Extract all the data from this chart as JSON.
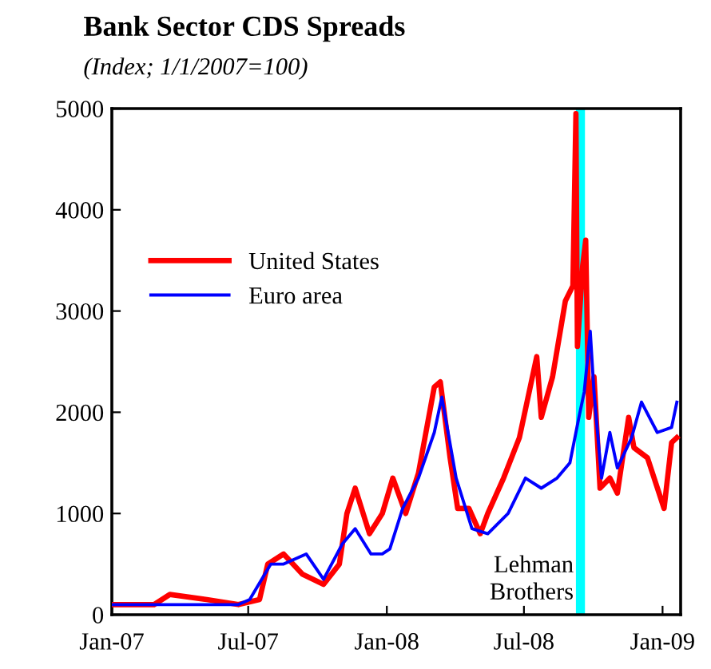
{
  "chart_data": {
    "type": "line",
    "title": "Bank Sector CDS Spreads",
    "subtitle": "(Index; 1/1/2007=100)",
    "xlim": [
      "2007-01-01",
      "2009-01-25"
    ],
    "xticks": [
      {
        "value": "2007-01-01",
        "label": "Jan-07"
      },
      {
        "value": "2007-07-01",
        "label": "Jul-07"
      },
      {
        "value": "2008-01-01",
        "label": "Jan-08"
      },
      {
        "value": "2008-07-01",
        "label": "Jul-08"
      },
      {
        "value": "2009-01-01",
        "label": "Jan-09"
      }
    ],
    "ylim": [
      0,
      5000
    ],
    "yticks": [
      0,
      1000,
      2000,
      3000,
      4000,
      5000
    ],
    "grid": false,
    "legend": "top left",
    "line_style": "solid",
    "marker": "none",
    "bands": [
      {
        "axis": "x",
        "from": "2008-09-08",
        "to": "2008-09-20",
        "label": "Lehman\nBrothers",
        "color": "#00ffff"
      }
    ],
    "series": [
      {
        "name": "United States",
        "color": "#ff0000",
        "x": [
          "2007-01-01",
          "2007-02-26",
          "2007-03-19",
          "2007-05-07",
          "2007-06-18",
          "2007-07-16",
          "2007-07-27",
          "2007-08-17",
          "2007-09-11",
          "2007-10-09",
          "2007-10-30",
          "2007-11-09",
          "2007-11-20",
          "2007-12-09",
          "2007-12-26",
          "2008-01-09",
          "2008-01-26",
          "2008-02-12",
          "2008-03-04",
          "2008-03-12",
          "2008-03-25",
          "2008-04-04",
          "2008-04-19",
          "2008-05-04",
          "2008-05-14",
          "2008-06-04",
          "2008-06-25",
          "2008-07-18",
          "2008-07-24",
          "2008-08-08",
          "2008-08-25",
          "2008-09-04",
          "2008-09-08",
          "2008-09-10",
          "2008-09-17",
          "2008-09-21",
          "2008-09-25",
          "2008-10-02",
          "2008-10-10",
          "2008-10-23",
          "2008-11-02",
          "2008-11-17",
          "2008-11-24",
          "2008-12-12",
          "2009-01-03",
          "2009-01-13",
          "2009-01-20"
        ],
        "values": [
          100,
          100,
          200,
          150,
          100,
          150,
          500,
          600,
          400,
          300,
          500,
          1000,
          1250,
          800,
          1000,
          1350,
          1000,
          1400,
          2250,
          2300,
          1550,
          1050,
          1050,
          800,
          1000,
          1350,
          1750,
          2550,
          1950,
          2350,
          3100,
          3250,
          4950,
          2650,
          3450,
          3700,
          1950,
          2350,
          1250,
          1350,
          1200,
          1950,
          1650,
          1550,
          1050,
          1700,
          1750
        ]
      },
      {
        "name": "Euro area",
        "color": "#0000ff",
        "x": [
          "2007-01-01",
          "2007-06-18",
          "2007-07-03",
          "2007-07-31",
          "2007-08-17",
          "2007-09-16",
          "2007-10-09",
          "2007-11-03",
          "2007-11-20",
          "2007-12-11",
          "2007-12-26",
          "2008-01-05",
          "2008-01-22",
          "2008-02-12",
          "2008-03-04",
          "2008-03-14",
          "2008-04-02",
          "2008-04-23",
          "2008-05-14",
          "2008-06-10",
          "2008-07-03",
          "2008-07-24",
          "2008-08-14",
          "2008-08-31",
          "2008-09-12",
          "2008-09-19",
          "2008-09-27",
          "2008-10-02",
          "2008-10-12",
          "2008-10-23",
          "2008-11-02",
          "2008-11-21",
          "2008-12-04",
          "2008-12-25",
          "2009-01-13",
          "2009-01-20"
        ],
        "values": [
          100,
          100,
          150,
          500,
          500,
          600,
          350,
          700,
          850,
          600,
          600,
          650,
          1050,
          1350,
          1800,
          2150,
          1350,
          850,
          800,
          1000,
          1350,
          1250,
          1350,
          1500,
          1950,
          2200,
          2800,
          2200,
          1350,
          1800,
          1450,
          1750,
          2100,
          1800,
          1850,
          2100
        ]
      }
    ]
  }
}
